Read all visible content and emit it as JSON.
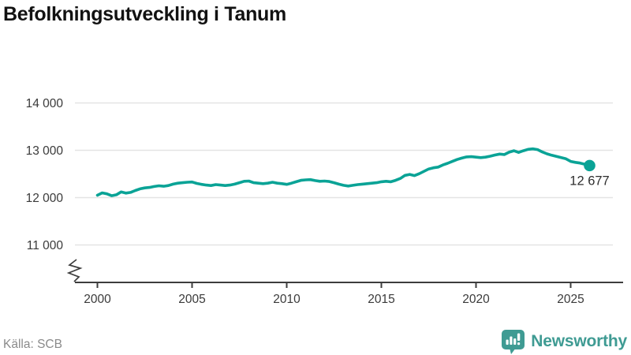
{
  "title": "Befolkningsutveckling i Tanum",
  "source": "Källa: SCB",
  "branding": {
    "name": "Newsworthy",
    "color": "#3f9b93",
    "icon": "newsworthy-pin-bar-chart-icon"
  },
  "colors": {
    "line": "#0aa396",
    "grid": "#e4e4e4",
    "axis": "#3d3d3d",
    "tick_text": "#3a3a3a",
    "end_label_text": "#2e2e2e"
  },
  "chart_data": {
    "type": "line",
    "title": "Befolkningsutveckling i Tanum",
    "xlabel": "",
    "ylabel": "",
    "x_start": 2000.0,
    "x_step": 0.25,
    "x_end": 2026.0,
    "values": [
      12050,
      12100,
      12080,
      12040,
      12060,
      12120,
      12095,
      12110,
      12150,
      12185,
      12205,
      12215,
      12235,
      12250,
      12240,
      12255,
      12285,
      12305,
      12315,
      12325,
      12330,
      12300,
      12280,
      12265,
      12255,
      12275,
      12265,
      12255,
      12265,
      12285,
      12315,
      12345,
      12350,
      12315,
      12305,
      12295,
      12305,
      12325,
      12305,
      12295,
      12280,
      12305,
      12335,
      12365,
      12375,
      12380,
      12360,
      12345,
      12350,
      12340,
      12315,
      12285,
      12260,
      12245,
      12260,
      12275,
      12285,
      12295,
      12305,
      12315,
      12335,
      12345,
      12335,
      12365,
      12405,
      12470,
      12490,
      12465,
      12505,
      12555,
      12605,
      12630,
      12645,
      12690,
      12725,
      12765,
      12805,
      12835,
      12860,
      12865,
      12855,
      12845,
      12855,
      12875,
      12900,
      12920,
      12910,
      12960,
      12990,
      12955,
      12990,
      13020,
      13030,
      13015,
      12965,
      12925,
      12895,
      12870,
      12845,
      12820,
      12765,
      12745,
      12730,
      12705,
      12677
    ],
    "last_value": 12677,
    "end_label": "12 677",
    "yticks": [
      {
        "value": 11000,
        "label": "11 000"
      },
      {
        "value": 12000,
        "label": "12 000"
      },
      {
        "value": 13000,
        "label": "13 000"
      },
      {
        "value": 14000,
        "label": "14 000"
      }
    ],
    "xticks": [
      {
        "value": 2000,
        "label": "2000"
      },
      {
        "value": 2005,
        "label": "2005"
      },
      {
        "value": 2010,
        "label": "2010"
      },
      {
        "value": 2015,
        "label": "2015"
      },
      {
        "value": 2020,
        "label": "2020"
      },
      {
        "value": 2025,
        "label": "2025"
      }
    ],
    "ylim": [
      11000,
      14000
    ],
    "xlim": [
      2000,
      2027.8
    ],
    "axis_break": true,
    "grid": true,
    "legend": "none",
    "line_color": "#0aa396"
  }
}
